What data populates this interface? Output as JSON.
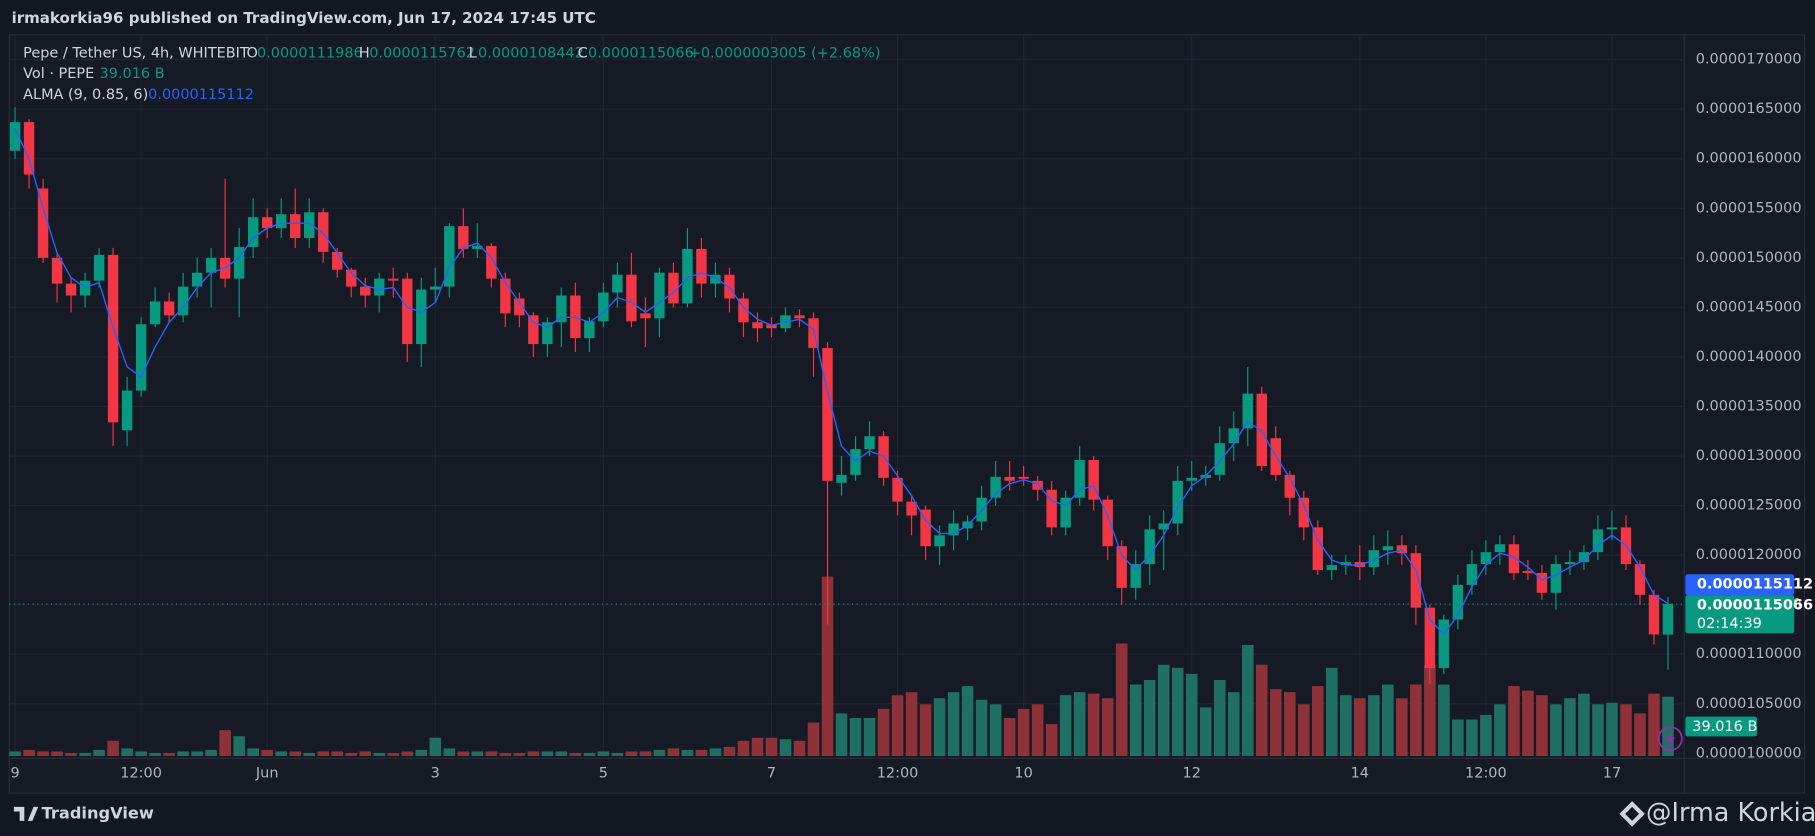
{
  "header": {
    "text": "irmakorkia96 published on TradingView.com, Jun 17, 2024 17:45 UTC"
  },
  "footer": {
    "brand": "TradingView",
    "author": "@Irma Korkia"
  },
  "chart_data": {
    "type": "candlestick",
    "symbol": "Pepe / Tether US, 4h, WHITEBIT",
    "legend_labels": [
      "O",
      "H",
      "L",
      "C"
    ],
    "change": "+0.0000003005 (+2.68%)",
    "countdown": "02:14:39",
    "grid": true,
    "ylim": [
      9.95e-06,
      1.725e-05
    ],
    "yticks": [
      {
        "value": 1e-05,
        "label": "0.0000100000"
      },
      {
        "value": 1.05e-05,
        "label": "0.0000105000"
      },
      {
        "value": 1.1e-05,
        "label": "0.0000110000"
      },
      {
        "value": 1.15e-05,
        "label": "0.0000115000"
      },
      {
        "value": 1.2e-05,
        "label": "0.0000120000"
      },
      {
        "value": 1.25e-05,
        "label": "0.0000125000"
      },
      {
        "value": 1.3e-05,
        "label": "0.0000130000"
      },
      {
        "value": 1.35e-05,
        "label": "0.0000135000"
      },
      {
        "value": 1.4e-05,
        "label": "0.0000140000"
      },
      {
        "value": 1.45e-05,
        "label": "0.0000145000"
      },
      {
        "value": 1.5e-05,
        "label": "0.0000150000"
      },
      {
        "value": 1.55e-05,
        "label": "0.0000155000"
      },
      {
        "value": 1.6e-05,
        "label": "0.0000160000"
      },
      {
        "value": 1.65e-05,
        "label": "0.0000165000"
      },
      {
        "value": 1.7e-05,
        "label": "0.0000170000"
      }
    ],
    "categories": [
      "9",
      null,
      null,
      null,
      null,
      null,
      null,
      null,
      null,
      "12:00",
      null,
      null,
      null,
      null,
      null,
      null,
      null,
      null,
      "Jun",
      null,
      null,
      null,
      null,
      null,
      null,
      null,
      null,
      null,
      null,
      null,
      "3",
      null,
      null,
      null,
      null,
      null,
      null,
      null,
      null,
      null,
      null,
      null,
      "5",
      null,
      null,
      null,
      null,
      null,
      null,
      null,
      null,
      null,
      null,
      null,
      "7",
      null,
      null,
      null,
      null,
      null,
      null,
      null,
      null,
      "12:00",
      null,
      null,
      null,
      null,
      null,
      null,
      null,
      null,
      "10",
      null,
      null,
      null,
      null,
      null,
      null,
      null,
      null,
      null,
      null,
      null,
      "12",
      null,
      null,
      null,
      null,
      null,
      null,
      null,
      null,
      null,
      null,
      null,
      "14",
      null,
      null,
      null,
      null,
      null,
      null,
      null,
      null,
      "12:00",
      null,
      null,
      null,
      null,
      null,
      null,
      null,
      null,
      "17",
      null,
      null,
      null,
      null
    ],
    "candles": {
      "up_color": "#089981",
      "down_color": "#f23645",
      "open": [
        1.608e-05,
        1.637e-05,
        1.57e-05,
        1.5e-05,
        1.474e-05,
        1.462e-05,
        1.477e-05,
        1.503e-05,
        1.326e-05,
        1.366e-05,
        1.433e-05,
        1.456e-05,
        1.442e-05,
        1.471e-05,
        1.485e-05,
        1.5e-05,
        1.479e-05,
        1.511e-05,
        1.541e-05,
        1.53e-05,
        1.544e-05,
        1.52e-05,
        1.546e-05,
        1.506e-05,
        1.488e-05,
        1.471e-05,
        1.462e-05,
        1.479e-05,
        1.479e-05,
        1.413e-05,
        1.468e-05,
        1.471e-05,
        1.532e-05,
        1.509e-05,
        1.512e-05,
        1.479e-05,
        1.459e-05,
        1.442e-05,
        1.413e-05,
        1.435e-05,
        1.462e-05,
        1.419e-05,
        1.436e-05,
        1.465e-05,
        1.483e-05,
        1.444e-05,
        1.439e-05,
        1.485e-05,
        1.454e-05,
        1.509e-05,
        1.474e-05,
        1.483e-05,
        1.459e-05,
        1.435e-05,
        1.433e-05,
        1.429e-05,
        1.442e-05,
        1.439e-05,
        1.409e-05,
        1.273e-05,
        1.281e-05,
        1.307e-05,
        1.32e-05,
        1.278e-05,
        1.254e-05,
        1.246e-05,
        1.209e-05,
        1.22e-05,
        1.227e-05,
        1.234e-05,
        1.258e-05,
        1.279e-05,
        1.279e-05,
        1.275e-05,
        1.266e-05,
        1.228e-05,
        1.258e-05,
        1.296e-05,
        1.256e-05,
        1.209e-05,
        1.167e-05,
        1.191e-05,
        1.226e-05,
        1.232e-05,
        1.275e-05,
        1.278e-05,
        1.281e-05,
        1.313e-05,
        1.328e-05,
        1.363e-05,
        1.318e-05,
        1.281e-05,
        1.258e-05,
        1.228e-05,
        1.185e-05,
        1.19e-05,
        1.193e-05,
        1.188e-05,
        1.205e-05,
        1.21e-05,
        1.202e-05,
        1.147e-05,
        1.086e-05,
        1.135e-05,
        1.17e-05,
        1.191e-05,
        1.203e-05,
        1.211e-05,
        1.184e-05,
        1.182e-05,
        1.162e-05,
        1.191e-05,
        1.193e-05,
        1.203e-05,
        1.226e-05,
        1.228e-05,
        1.191e-05,
        1.16e-05,
        1.11986e-05
      ],
      "high": [
        1.652e-05,
        1.64e-05,
        1.58e-05,
        1.505e-05,
        1.48e-05,
        1.485e-05,
        1.51e-05,
        1.51e-05,
        1.38e-05,
        1.44e-05,
        1.47e-05,
        1.465e-05,
        1.485e-05,
        1.5e-05,
        1.51e-05,
        1.58e-05,
        1.53e-05,
        1.56e-05,
        1.55e-05,
        1.56e-05,
        1.57e-05,
        1.56e-05,
        1.55e-05,
        1.51e-05,
        1.49e-05,
        1.48e-05,
        1.485e-05,
        1.49e-05,
        1.485e-05,
        1.48e-05,
        1.49e-05,
        1.535e-05,
        1.55e-05,
        1.535e-05,
        1.515e-05,
        1.485e-05,
        1.465e-05,
        1.445e-05,
        1.44e-05,
        1.47e-05,
        1.475e-05,
        1.44e-05,
        1.475e-05,
        1.495e-05,
        1.505e-05,
        1.46e-05,
        1.49e-05,
        1.495e-05,
        1.53e-05,
        1.52e-05,
        1.495e-05,
        1.49e-05,
        1.465e-05,
        1.445e-05,
        1.44e-05,
        1.45e-05,
        1.448e-05,
        1.445e-05,
        1.415e-05,
        1.3e-05,
        1.32e-05,
        1.335e-05,
        1.325e-05,
        1.285e-05,
        1.26e-05,
        1.25e-05,
        1.23e-05,
        1.245e-05,
        1.24e-05,
        1.27e-05,
        1.295e-05,
        1.295e-05,
        1.29e-05,
        1.28e-05,
        1.275e-05,
        1.265e-05,
        1.31e-05,
        1.3e-05,
        1.26e-05,
        1.215e-05,
        1.205e-05,
        1.24e-05,
        1.245e-05,
        1.29e-05,
        1.295e-05,
        1.29e-05,
        1.33e-05,
        1.345e-05,
        1.39e-05,
        1.37e-05,
        1.33e-05,
        1.285e-05,
        1.265e-05,
        1.235e-05,
        1.2e-05,
        1.2e-05,
        1.21e-05,
        1.22e-05,
        1.225e-05,
        1.22e-05,
        1.21e-05,
        1.15e-05,
        1.14e-05,
        1.18e-05,
        1.205e-05,
        1.215e-05,
        1.22e-05,
        1.22e-05,
        1.195e-05,
        1.19e-05,
        1.2e-05,
        1.205e-05,
        1.21e-05,
        1.24e-05,
        1.245e-05,
        1.24e-05,
        1.195e-05,
        1.165e-05,
        1.15762e-05
      ],
      "low": [
        1.6e-05,
        1.57e-05,
        1.495e-05,
        1.455e-05,
        1.445e-05,
        1.45e-05,
        1.47e-05,
        1.31e-05,
        1.31e-05,
        1.36e-05,
        1.43e-05,
        1.435e-05,
        1.435e-05,
        1.46e-05,
        1.45e-05,
        1.47e-05,
        1.44e-05,
        1.5e-05,
        1.52e-05,
        1.52e-05,
        1.51e-05,
        1.51e-05,
        1.495e-05,
        1.48e-05,
        1.46e-05,
        1.45e-05,
        1.445e-05,
        1.46e-05,
        1.395e-05,
        1.39e-05,
        1.455e-05,
        1.46e-05,
        1.5e-05,
        1.5e-05,
        1.47e-05,
        1.43e-05,
        1.43e-05,
        1.4e-05,
        1.4e-05,
        1.41e-05,
        1.405e-05,
        1.405e-05,
        1.43e-05,
        1.45e-05,
        1.43e-05,
        1.41e-05,
        1.42e-05,
        1.45e-05,
        1.45e-05,
        1.46e-05,
        1.46e-05,
        1.445e-05,
        1.42e-05,
        1.415e-05,
        1.42e-05,
        1.425e-05,
        1.43e-05,
        1.38e-05,
        1.13e-05,
        1.26e-05,
        1.275e-05,
        1.3e-05,
        1.27e-05,
        1.24e-05,
        1.22e-05,
        1.195e-05,
        1.19e-05,
        1.205e-05,
        1.215e-05,
        1.225e-05,
        1.25e-05,
        1.265e-05,
        1.27e-05,
        1.255e-05,
        1.22e-05,
        1.22e-05,
        1.25e-05,
        1.245e-05,
        1.195e-05,
        1.15e-05,
        1.155e-05,
        1.17e-05,
        1.185e-05,
        1.22e-05,
        1.265e-05,
        1.27e-05,
        1.275e-05,
        1.295e-05,
        1.31e-05,
        1.285e-05,
        1.275e-05,
        1.24e-05,
        1.215e-05,
        1.18e-05,
        1.175e-05,
        1.18e-05,
        1.175e-05,
        1.18e-05,
        1.19e-05,
        1.19e-05,
        1.13e-05,
        1.07e-05,
        1.08e-05,
        1.125e-05,
        1.16e-05,
        1.18e-05,
        1.19e-05,
        1.175e-05,
        1.175e-05,
        1.155e-05,
        1.145e-05,
        1.18e-05,
        1.185e-05,
        1.195e-05,
        1.215e-05,
        1.185e-05,
        1.15e-05,
        1.11e-05,
        1.08442e-05
      ],
      "close": [
        1.637e-05,
        1.584e-05,
        1.5e-05,
        1.474e-05,
        1.462e-05,
        1.477e-05,
        1.503e-05,
        1.334e-05,
        1.366e-05,
        1.433e-05,
        1.456e-05,
        1.442e-05,
        1.471e-05,
        1.485e-05,
        1.5e-05,
        1.479e-05,
        1.511e-05,
        1.541e-05,
        1.53e-05,
        1.544e-05,
        1.52e-05,
        1.546e-05,
        1.506e-05,
        1.488e-05,
        1.471e-05,
        1.462e-05,
        1.479e-05,
        1.477e-05,
        1.413e-05,
        1.468e-05,
        1.471e-05,
        1.532e-05,
        1.509e-05,
        1.512e-05,
        1.479e-05,
        1.444e-05,
        1.442e-05,
        1.413e-05,
        1.435e-05,
        1.462e-05,
        1.419e-05,
        1.436e-05,
        1.465e-05,
        1.483e-05,
        1.436e-05,
        1.439e-05,
        1.485e-05,
        1.454e-05,
        1.509e-05,
        1.474e-05,
        1.483e-05,
        1.459e-05,
        1.435e-05,
        1.429e-05,
        1.429e-05,
        1.442e-05,
        1.439e-05,
        1.409e-05,
        1.275e-05,
        1.281e-05,
        1.307e-05,
        1.32e-05,
        1.278e-05,
        1.254e-05,
        1.24e-05,
        1.209e-05,
        1.22e-05,
        1.232e-05,
        1.234e-05,
        1.258e-05,
        1.279e-05,
        1.275e-05,
        1.277e-05,
        1.266e-05,
        1.228e-05,
        1.258e-05,
        1.296e-05,
        1.256e-05,
        1.209e-05,
        1.167e-05,
        1.191e-05,
        1.226e-05,
        1.232e-05,
        1.275e-05,
        1.278e-05,
        1.281e-05,
        1.313e-05,
        1.328e-05,
        1.363e-05,
        1.29e-05,
        1.281e-05,
        1.258e-05,
        1.228e-05,
        1.185e-05,
        1.19e-05,
        1.193e-05,
        1.188e-05,
        1.205e-05,
        1.209e-05,
        1.202e-05,
        1.147e-05,
        1.086e-05,
        1.135e-05,
        1.17e-05,
        1.191e-05,
        1.203e-05,
        1.211e-05,
        1.182e-05,
        1.182e-05,
        1.162e-05,
        1.191e-05,
        1.193e-05,
        1.203e-05,
        1.226e-05,
        1.228e-05,
        1.191e-05,
        1.16e-05,
        1.12e-05,
        1.15066e-05
      ]
    },
    "volume": {
      "name": "Vol · PEPE",
      "last_label": "39.016 B",
      "up_color": "#1f6f63",
      "down_color": "#8f3138",
      "values": [
        3,
        4,
        3,
        3,
        2,
        2,
        4,
        10,
        5,
        3,
        2,
        2,
        3,
        3,
        4,
        17,
        13,
        5,
        4,
        3,
        3,
        2,
        3,
        3,
        2,
        3,
        2,
        2,
        3,
        4,
        12,
        5,
        3,
        3,
        3,
        2,
        2,
        3,
        3,
        3,
        2,
        2,
        3,
        2,
        3,
        3,
        4,
        5,
        4,
        4,
        5,
        6,
        10,
        12,
        12,
        11,
        10,
        22,
        118,
        28,
        25,
        25,
        31,
        40,
        42,
        34,
        38,
        42,
        46,
        37,
        34,
        25,
        31,
        34,
        21,
        40,
        42,
        41,
        38,
        74,
        47,
        50,
        60,
        58,
        54,
        32,
        50,
        42,
        73,
        60,
        44,
        42,
        34,
        46,
        58,
        40,
        38,
        40,
        47,
        38,
        47,
        60,
        47,
        24,
        24,
        27,
        34,
        46,
        43,
        40,
        34,
        38,
        41,
        34,
        35,
        34,
        28,
        41,
        39.016
      ]
    },
    "alma": {
      "name": "ALMA (9, 0.85, 6)",
      "color": "#2962ff",
      "values": [
        1.63e-05,
        1.6e-05,
        1.55e-05,
        1.505e-05,
        1.48e-05,
        1.47e-05,
        1.475e-05,
        1.43e-05,
        1.39e-05,
        1.38e-05,
        1.41e-05,
        1.435e-05,
        1.45e-05,
        1.47e-05,
        1.485e-05,
        1.49e-05,
        1.5e-05,
        1.52e-05,
        1.53e-05,
        1.535e-05,
        1.535e-05,
        1.535e-05,
        1.525e-05,
        1.505e-05,
        1.485e-05,
        1.472e-05,
        1.468e-05,
        1.47e-05,
        1.45e-05,
        1.445e-05,
        1.455e-05,
        1.49e-05,
        1.51e-05,
        1.515e-05,
        1.5e-05,
        1.475e-05,
        1.455e-05,
        1.435e-05,
        1.43e-05,
        1.44e-05,
        1.44e-05,
        1.435e-05,
        1.445e-05,
        1.46e-05,
        1.455e-05,
        1.445e-05,
        1.455e-05,
        1.465e-05,
        1.48e-05,
        1.485e-05,
        1.48e-05,
        1.47e-05,
        1.45e-05,
        1.438e-05,
        1.432e-05,
        1.435e-05,
        1.438e-05,
        1.428e-05,
        1.365e-05,
        1.31e-05,
        1.295e-05,
        1.305e-05,
        1.3e-05,
        1.28e-05,
        1.26e-05,
        1.235e-05,
        1.222e-05,
        1.222e-05,
        1.23e-05,
        1.245e-05,
        1.262e-05,
        1.272e-05,
        1.276e-05,
        1.272e-05,
        1.255e-05,
        1.25e-05,
        1.266e-05,
        1.27e-05,
        1.24e-05,
        1.2e-05,
        1.185e-05,
        1.2e-05,
        1.22e-05,
        1.248e-05,
        1.27e-05,
        1.28e-05,
        1.295e-05,
        1.312e-05,
        1.335e-05,
        1.325e-05,
        1.3e-05,
        1.278e-05,
        1.25e-05,
        1.215e-05,
        1.195e-05,
        1.19e-05,
        1.19e-05,
        1.195e-05,
        1.202e-05,
        1.205e-05,
        1.185e-05,
        1.135e-05,
        1.12e-05,
        1.14e-05,
        1.168e-05,
        1.19e-05,
        1.202e-05,
        1.198e-05,
        1.188e-05,
        1.175e-05,
        1.18e-05,
        1.188e-05,
        1.195e-05,
        1.21e-05,
        1.22e-05,
        1.21e-05,
        1.188e-05,
        1.16e-05,
        1.15112e-05
      ]
    }
  }
}
